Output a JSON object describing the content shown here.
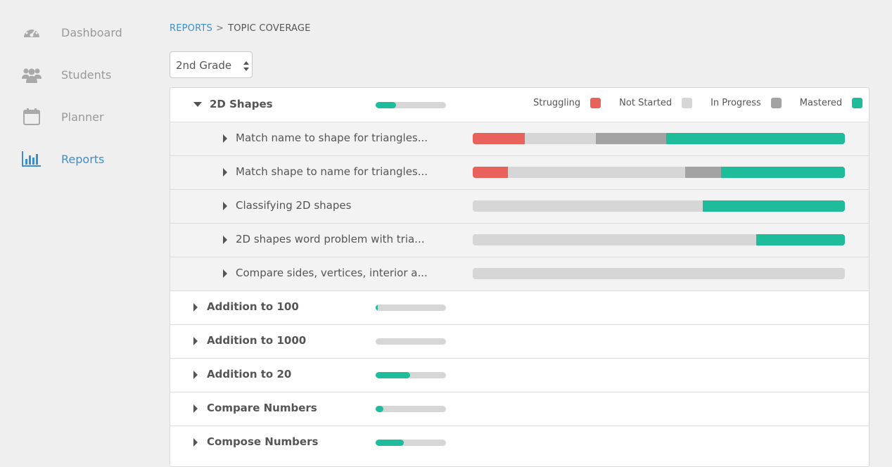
{
  "sidebar": {
    "items": [
      {
        "label": "Dashboard",
        "icon": "dashboard-icon"
      },
      {
        "label": "Students",
        "icon": "students-icon"
      },
      {
        "label": "Planner",
        "icon": "calendar-icon"
      },
      {
        "label": "Reports",
        "icon": "bar-chart-icon",
        "active": true
      }
    ]
  },
  "breadcrumb": {
    "parent": "REPORTS",
    "separator": ">",
    "current": "TOPIC COVERAGE"
  },
  "grade_select": {
    "value": "2nd Grade"
  },
  "legend": [
    {
      "label": "Struggling",
      "color": "#e8625b"
    },
    {
      "label": "Not Started",
      "color": "#d6d6d6"
    },
    {
      "label": "In Progress",
      "color": "#a3a3a3"
    },
    {
      "label": "Mastered",
      "color": "#1fbc9c"
    }
  ],
  "topics": [
    {
      "label": "2D Shapes",
      "progress": 0.29,
      "expanded": true,
      "skills": [
        {
          "label": "Match name to shape for triangles...",
          "dist": [
            0.14,
            0.19,
            0.19,
            0.48
          ]
        },
        {
          "label": "Match shape to name for triangles...",
          "dist": [
            0.095,
            0.475,
            0.097,
            0.333
          ]
        },
        {
          "label": "Classifying 2D shapes",
          "dist": [
            0,
            0.618,
            0,
            0.382
          ]
        },
        {
          "label": "2D shapes word problem with tria...",
          "dist": [
            0,
            0.762,
            0,
            0.238
          ]
        },
        {
          "label": "Compare sides, vertices, interior a...",
          "dist": [
            0,
            1,
            0,
            0
          ]
        }
      ]
    },
    {
      "label": "Addition to 100",
      "progress": 0.03,
      "expanded": false
    },
    {
      "label": "Addition to 1000",
      "progress": 0,
      "expanded": false
    },
    {
      "label": "Addition to 20",
      "progress": 0.49,
      "expanded": false
    },
    {
      "label": "Compare Numbers",
      "progress": 0.11,
      "expanded": false
    },
    {
      "label": "Compose Numbers",
      "progress": 0.4,
      "expanded": false
    }
  ]
}
